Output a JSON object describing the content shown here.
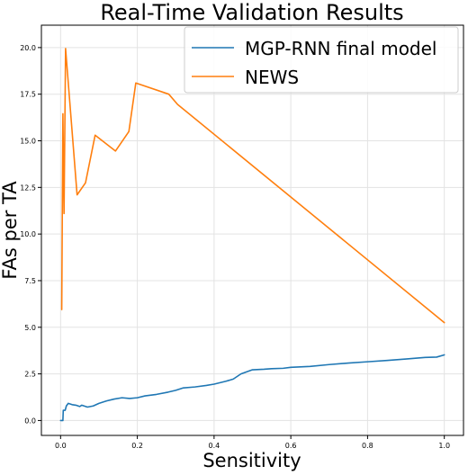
{
  "chart_data": {
    "type": "line",
    "title": "Real-Time Validation Results",
    "xlabel": "Sensitivity",
    "ylabel": "FAs per TA",
    "xlim": [
      -0.05,
      1.05
    ],
    "ylim": [
      -0.8,
      21.2
    ],
    "xticks": [
      0.0,
      0.2,
      0.4,
      0.6,
      0.8,
      1.0
    ],
    "xtick_labels": [
      "0.0",
      "0.2",
      "0.4",
      "0.6",
      "0.8",
      "1.0"
    ],
    "yticks": [
      0.0,
      2.5,
      5.0,
      7.5,
      10.0,
      12.5,
      15.0,
      17.5,
      20.0
    ],
    "ytick_labels": [
      "0.0",
      "2.5",
      "5.0",
      "7.5",
      "10.0",
      "12.5",
      "15.0",
      "17.5",
      "20.0"
    ],
    "grid": true,
    "legend_position": "top-right",
    "series": [
      {
        "name": "MGP-RNN final model",
        "color": "#1f77b4",
        "points": [
          [
            0.0,
            0.0
          ],
          [
            0.006,
            0.0
          ],
          [
            0.007,
            0.55
          ],
          [
            0.012,
            0.55
          ],
          [
            0.015,
            0.78
          ],
          [
            0.02,
            0.92
          ],
          [
            0.03,
            0.85
          ],
          [
            0.04,
            0.82
          ],
          [
            0.05,
            0.75
          ],
          [
            0.055,
            0.82
          ],
          [
            0.07,
            0.72
          ],
          [
            0.085,
            0.78
          ],
          [
            0.1,
            0.92
          ],
          [
            0.12,
            1.05
          ],
          [
            0.14,
            1.15
          ],
          [
            0.16,
            1.22
          ],
          [
            0.18,
            1.18
          ],
          [
            0.2,
            1.22
          ],
          [
            0.22,
            1.32
          ],
          [
            0.25,
            1.4
          ],
          [
            0.28,
            1.52
          ],
          [
            0.3,
            1.62
          ],
          [
            0.32,
            1.75
          ],
          [
            0.35,
            1.8
          ],
          [
            0.38,
            1.88
          ],
          [
            0.4,
            1.95
          ],
          [
            0.43,
            2.1
          ],
          [
            0.45,
            2.22
          ],
          [
            0.47,
            2.5
          ],
          [
            0.5,
            2.72
          ],
          [
            0.53,
            2.75
          ],
          [
            0.55,
            2.78
          ],
          [
            0.58,
            2.8
          ],
          [
            0.6,
            2.85
          ],
          [
            0.65,
            2.9
          ],
          [
            0.7,
            3.0
          ],
          [
            0.75,
            3.08
          ],
          [
            0.8,
            3.15
          ],
          [
            0.85,
            3.22
          ],
          [
            0.9,
            3.3
          ],
          [
            0.95,
            3.38
          ],
          [
            0.98,
            3.4
          ],
          [
            1.0,
            3.52
          ]
        ]
      },
      {
        "name": "NEWS",
        "color": "#ff7f0e",
        "points": [
          [
            0.003,
            5.95
          ],
          [
            0.006,
            16.45
          ],
          [
            0.009,
            11.1
          ],
          [
            0.013,
            19.95
          ],
          [
            0.043,
            12.1
          ],
          [
            0.065,
            12.75
          ],
          [
            0.09,
            15.3
          ],
          [
            0.143,
            14.45
          ],
          [
            0.178,
            15.5
          ],
          [
            0.196,
            18.1
          ],
          [
            0.282,
            17.5
          ],
          [
            0.305,
            16.95
          ],
          [
            1.0,
            5.25
          ]
        ]
      }
    ]
  }
}
